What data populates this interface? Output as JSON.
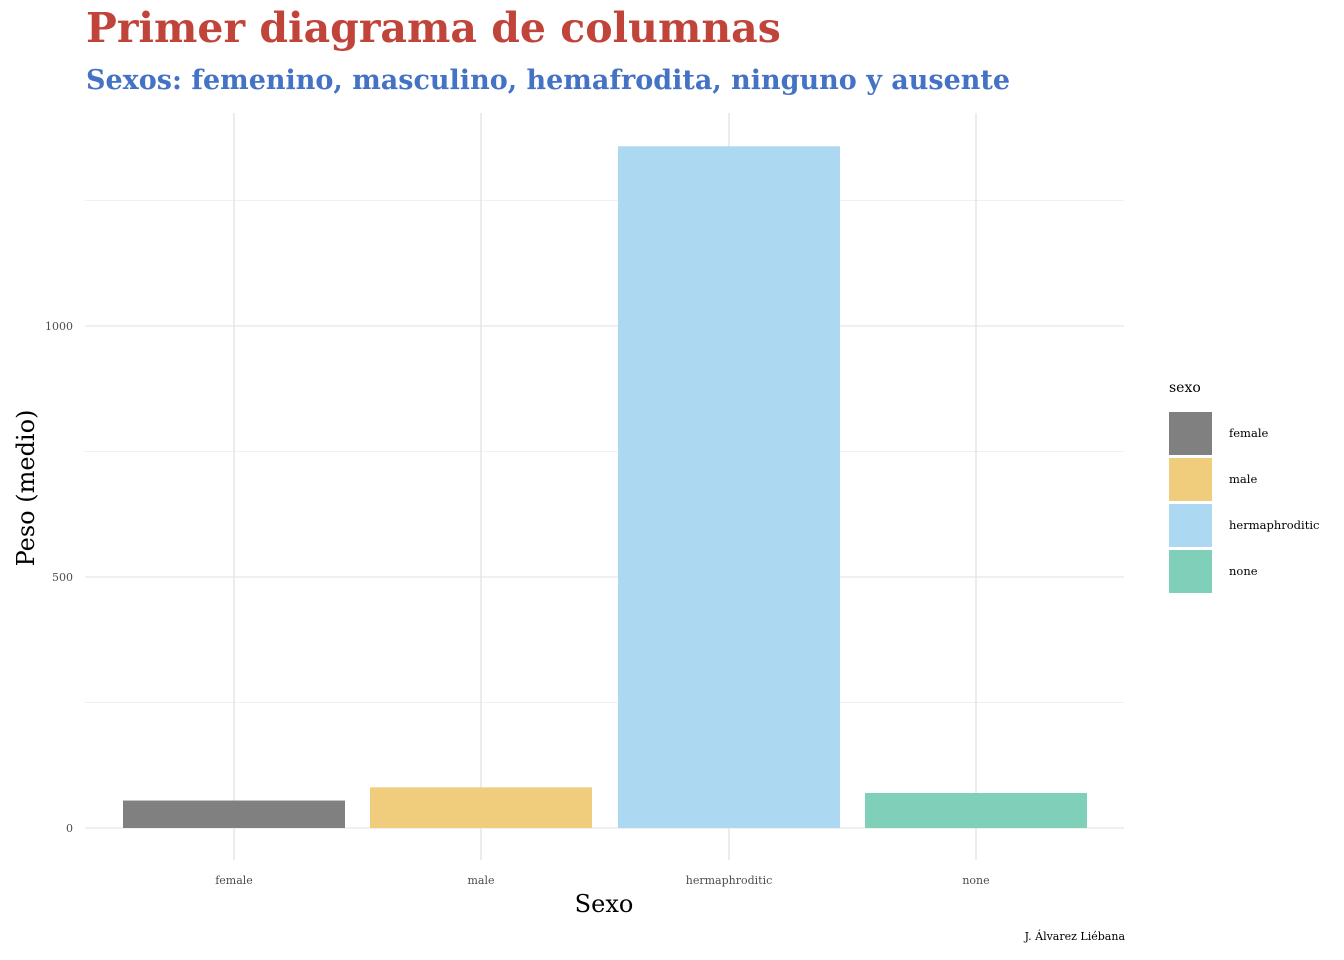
{
  "title": "Primer diagrama de columnas",
  "subtitle": "Sexos: femenino, masculino, hemafrodita, ninguno y ausente",
  "caption": "J. Álvarez Liébana",
  "legend": {
    "title": "sexo",
    "items": [
      {
        "label": "female",
        "color": "#808080"
      },
      {
        "label": "male",
        "color": "#f0cd7d"
      },
      {
        "label": "hermaphroditic",
        "color": "#acd8f2"
      },
      {
        "label": "none",
        "color": "#7fcfb9"
      }
    ]
  },
  "chart_data": {
    "type": "bar",
    "title": "Primer diagrama de columnas",
    "subtitle": "Sexos: femenino, masculino, hemafrodita, ninguno y ausente",
    "xlabel": "Sexo",
    "ylabel": "Peso (medio)",
    "categories": [
      "female",
      "male",
      "hermaphroditic",
      "none"
    ],
    "values": [
      54.7,
      81.0,
      1358.0,
      69.8
    ],
    "colors": [
      "#808080",
      "#f0cd7d",
      "#acd8f2",
      "#7fcfb9"
    ],
    "yticks": [
      0,
      500,
      1000
    ],
    "ylim": [
      0,
      1420
    ],
    "grid": true,
    "legend_position": "right"
  }
}
